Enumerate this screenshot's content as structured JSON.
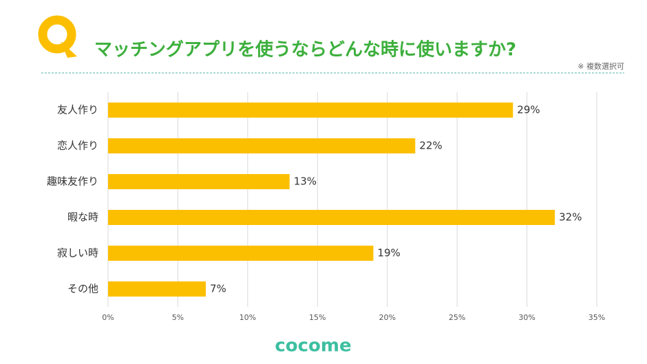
{
  "chart_data": {
    "type": "bar",
    "orientation": "horizontal",
    "title": "マッチングアプリを使うならどんな時に使いますか?",
    "note": "※ 複数選択可",
    "categories": [
      "友人作り",
      "恋人作り",
      "趣味友作り",
      "暇な時",
      "寂しい時",
      "その他"
    ],
    "values": [
      29,
      22,
      13,
      32,
      19,
      7
    ],
    "value_labels": [
      "29%",
      "22%",
      "13%",
      "32%",
      "19%",
      "7%"
    ],
    "color": "#fcbf00",
    "xlim": [
      0,
      35
    ],
    "xticks": [
      {
        "value": 0,
        "label": "0%"
      },
      {
        "value": 5,
        "label": "5%"
      },
      {
        "value": 10,
        "label": "10%"
      },
      {
        "value": 15,
        "label": "15%"
      },
      {
        "value": 20,
        "label": "20%"
      },
      {
        "value": 25,
        "label": "25%"
      },
      {
        "value": 30,
        "label": "30%"
      },
      {
        "value": 35,
        "label": "35%"
      }
    ],
    "grid": true
  },
  "logo": "cocome"
}
